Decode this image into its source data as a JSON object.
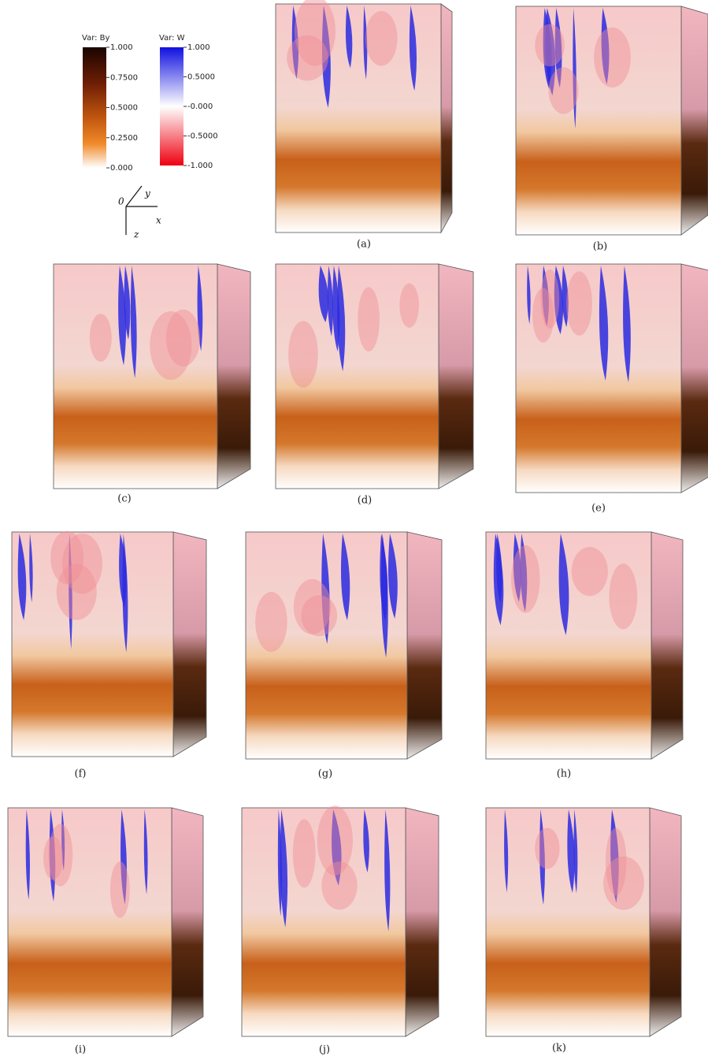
{
  "legend": {
    "by": {
      "title": "Var: By",
      "ticks": [
        "1.000",
        "0.7500",
        "0.5000",
        "0.2500",
        "0.000"
      ]
    },
    "w": {
      "title": "Var: W",
      "ticks": [
        "1.000",
        "0.5000",
        "-0.000",
        "-0.5000",
        "-1.000"
      ]
    }
  },
  "axes": {
    "origin": "0",
    "y": "y",
    "x": "x",
    "z": "z"
  },
  "panels": [
    {
      "caption": "(a)"
    },
    {
      "caption": "(b)"
    },
    {
      "caption": "(c)"
    },
    {
      "caption": "(d)"
    },
    {
      "caption": "(e)"
    },
    {
      "caption": "(f)"
    },
    {
      "caption": "(g)"
    },
    {
      "caption": "(h)"
    },
    {
      "caption": "(i)"
    },
    {
      "caption": "(j)"
    },
    {
      "caption": "(k)"
    }
  ]
}
